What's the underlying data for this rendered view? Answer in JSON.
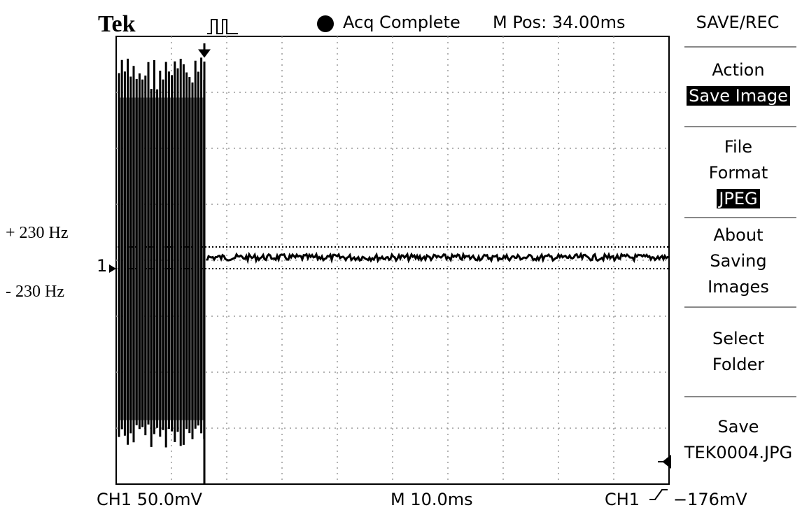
{
  "header": {
    "brand": "Tek",
    "trigger_symbol_icon": "pulse-trigger-icon",
    "acq_status": "Acq Complete",
    "m_pos": "M Pos: 34.00ms"
  },
  "annotations": {
    "upper": "+ 230 Hz",
    "lower": "- 230 Hz"
  },
  "channel_marker": "1",
  "footer": {
    "ch1_scale": "CH1  50.0mV",
    "timebase": "M 10.0ms",
    "trigger_source": "CH1",
    "trigger_level": "−176mV"
  },
  "menu": {
    "title": "SAVE/REC",
    "items": [
      {
        "label": "Action",
        "value": "Save Image"
      },
      {
        "label": "File Format",
        "label_line1": "File",
        "label_line2": "Format",
        "value": "JPEG"
      },
      {
        "label_line1": "About",
        "label_line2": "Saving",
        "label_line3": "Images"
      },
      {
        "label_line1": "Select",
        "label_line2": "Folder"
      },
      {
        "label_line1": "Save",
        "label_line2": "TEK0004.JPG"
      }
    ]
  },
  "colors": {
    "background": "#ffffff",
    "trace": "#000000",
    "grid": "#9a9a9a"
  }
}
